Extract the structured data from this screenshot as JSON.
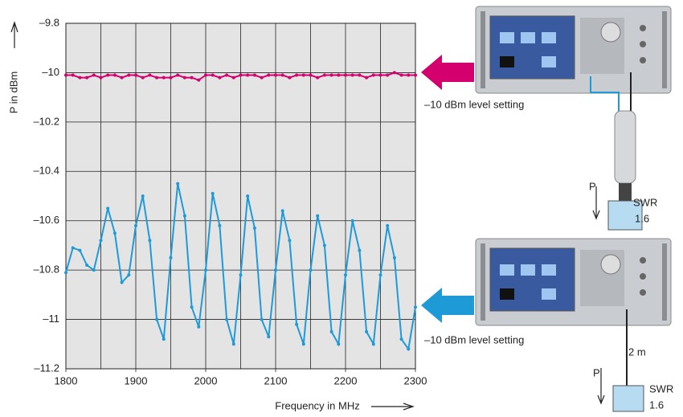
{
  "chart_data": {
    "type": "line",
    "x_label": "Frequency in MHz",
    "y_label": "P in dBm",
    "x": [
      1800,
      1810,
      1820,
      1830,
      1840,
      1850,
      1860,
      1870,
      1880,
      1890,
      1900,
      1910,
      1920,
      1930,
      1940,
      1950,
      1960,
      1970,
      1980,
      1990,
      2000,
      2010,
      2020,
      2030,
      2040,
      2050,
      2060,
      2070,
      2080,
      2090,
      2100,
      2110,
      2120,
      2130,
      2140,
      2150,
      2160,
      2170,
      2180,
      2190,
      2200,
      2210,
      2220,
      2230,
      2240,
      2250,
      2260,
      2270,
      2280,
      2290,
      2300
    ],
    "series": [
      {
        "color": "#d4006e",
        "values": [
          -10.01,
          -10.01,
          -10.02,
          -10.02,
          -10.01,
          -10.02,
          -10.01,
          -10.01,
          -10.02,
          -10.01,
          -10.01,
          -10.02,
          -10.01,
          -10.02,
          -10.02,
          -10.02,
          -10.01,
          -10.02,
          -10.02,
          -10.03,
          -10.01,
          -10.01,
          -10.02,
          -10.01,
          -10.02,
          -10.01,
          -10.01,
          -10.01,
          -10.02,
          -10.01,
          -10.01,
          -10.01,
          -10.02,
          -10.01,
          -10.01,
          -10.01,
          -10.02,
          -10.01,
          -10.01,
          -10.01,
          -10.01,
          -10.01,
          -10.01,
          -10.02,
          -10.01,
          -10.01,
          -10.01,
          -10.0,
          -10.01,
          -10.01,
          -10.01
        ]
      },
      {
        "color": "#1e9bd7",
        "values": [
          -10.81,
          -10.71,
          -10.72,
          -10.78,
          -10.8,
          -10.68,
          -10.55,
          -10.65,
          -10.85,
          -10.82,
          -10.62,
          -10.5,
          -10.68,
          -11.0,
          -11.08,
          -10.75,
          -10.45,
          -10.58,
          -10.95,
          -11.03,
          -10.8,
          -10.49,
          -10.62,
          -11.0,
          -11.1,
          -10.82,
          -10.5,
          -10.63,
          -11.0,
          -11.07,
          -10.8,
          -10.56,
          -10.68,
          -11.02,
          -11.1,
          -10.8,
          -10.58,
          -10.7,
          -11.05,
          -11.1,
          -10.82,
          -10.6,
          -10.72,
          -11.05,
          -11.1,
          -10.82,
          -10.62,
          -10.75,
          -11.08,
          -11.12,
          -10.95
        ]
      }
    ],
    "xlim": [
      1800,
      2300
    ],
    "xticks": [
      1800,
      1900,
      2000,
      2100,
      2200,
      2300
    ],
    "xgrid": [
      1850,
      1900,
      1950,
      2000,
      2050,
      2100,
      2150,
      2200,
      2250
    ],
    "ylim": [
      -11.2,
      -9.8
    ],
    "yticks": [
      {
        "value": -9.8,
        "label": "–9.8"
      },
      {
        "value": -10,
        "label": "–10"
      },
      {
        "value": -10.2,
        "label": "–10.2"
      },
      {
        "value": -10.4,
        "label": "–10.4"
      },
      {
        "value": -10.6,
        "label": "–10.6"
      },
      {
        "value": -10.8,
        "label": "–10.8"
      },
      {
        "value": -11,
        "label": "–11"
      },
      {
        "value": -11.2,
        "label": "–11.2"
      }
    ],
    "grid": true,
    "annotations": [
      "–10 dBm level setting",
      "P",
      "SWR",
      "1.6",
      "–10 dBm level setting",
      "2 m",
      "P",
      "SWR",
      "1.6"
    ]
  }
}
